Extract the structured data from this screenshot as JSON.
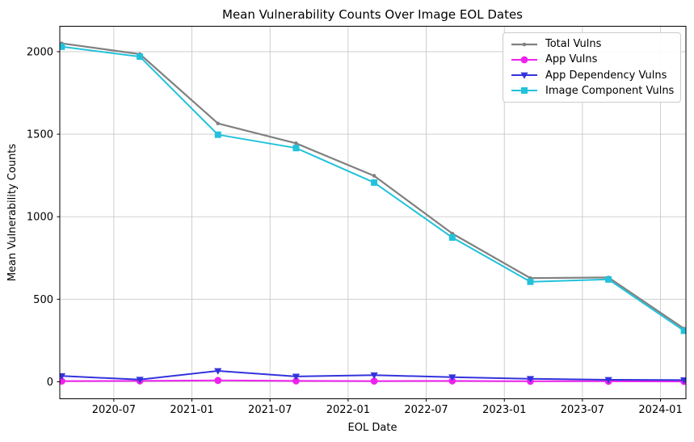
{
  "chart_data": {
    "type": "line",
    "title": "Mean Vulnerability Counts Over Image EOL Dates",
    "xlabel": "EOL Date",
    "ylabel": "Mean Vulnerability Counts",
    "grid": true,
    "legend_position": "upper right",
    "x_tick_labels": [
      "2020-07",
      "2021-01",
      "2021-07",
      "2022-01",
      "2022-07",
      "2023-01",
      "2023-07",
      "2024-01"
    ],
    "x_tick_months": [
      0,
      6,
      12,
      18,
      24,
      30,
      36,
      42
    ],
    "y_ticks": [
      0,
      500,
      1000,
      1500,
      2000
    ],
    "xlim_months": [
      -4.15,
      43.95
    ],
    "ylim": [
      -103,
      2154
    ],
    "x_dates": [
      "2020-03",
      "2020-09",
      "2021-03",
      "2021-09",
      "2022-03",
      "2022-09",
      "2023-03",
      "2023-09",
      "2024-02"
    ],
    "x_months": [
      -4,
      2,
      8,
      14,
      20,
      26,
      32,
      38,
      43.8
    ],
    "series": [
      {
        "name": "Total Vulns",
        "color": "#808080",
        "marker": "dot",
        "line_width": 2.2,
        "values": [
          2050,
          1985,
          1565,
          1445,
          1248,
          898,
          628,
          632,
          322
        ]
      },
      {
        "name": "App Vulns",
        "color": "#ee22ee",
        "marker": "circle",
        "line_width": 2.0,
        "values": [
          4,
          5,
          8,
          5,
          4,
          5,
          3,
          3,
          2
        ]
      },
      {
        "name": "App Dependency Vulns",
        "color": "#3333dd",
        "marker": "triangle-down",
        "line_width": 2.0,
        "values": [
          35,
          13,
          66,
          32,
          40,
          28,
          18,
          12,
          10
        ]
      },
      {
        "name": "Image Component Vulns",
        "color": "#22c2db",
        "marker": "square",
        "line_width": 2.0,
        "values": [
          2030,
          1970,
          1497,
          1416,
          1207,
          874,
          606,
          620,
          309
        ]
      }
    ],
    "colors": {
      "grid": "#c9c9c9",
      "spine": "#000000",
      "background": "#ffffff"
    }
  }
}
